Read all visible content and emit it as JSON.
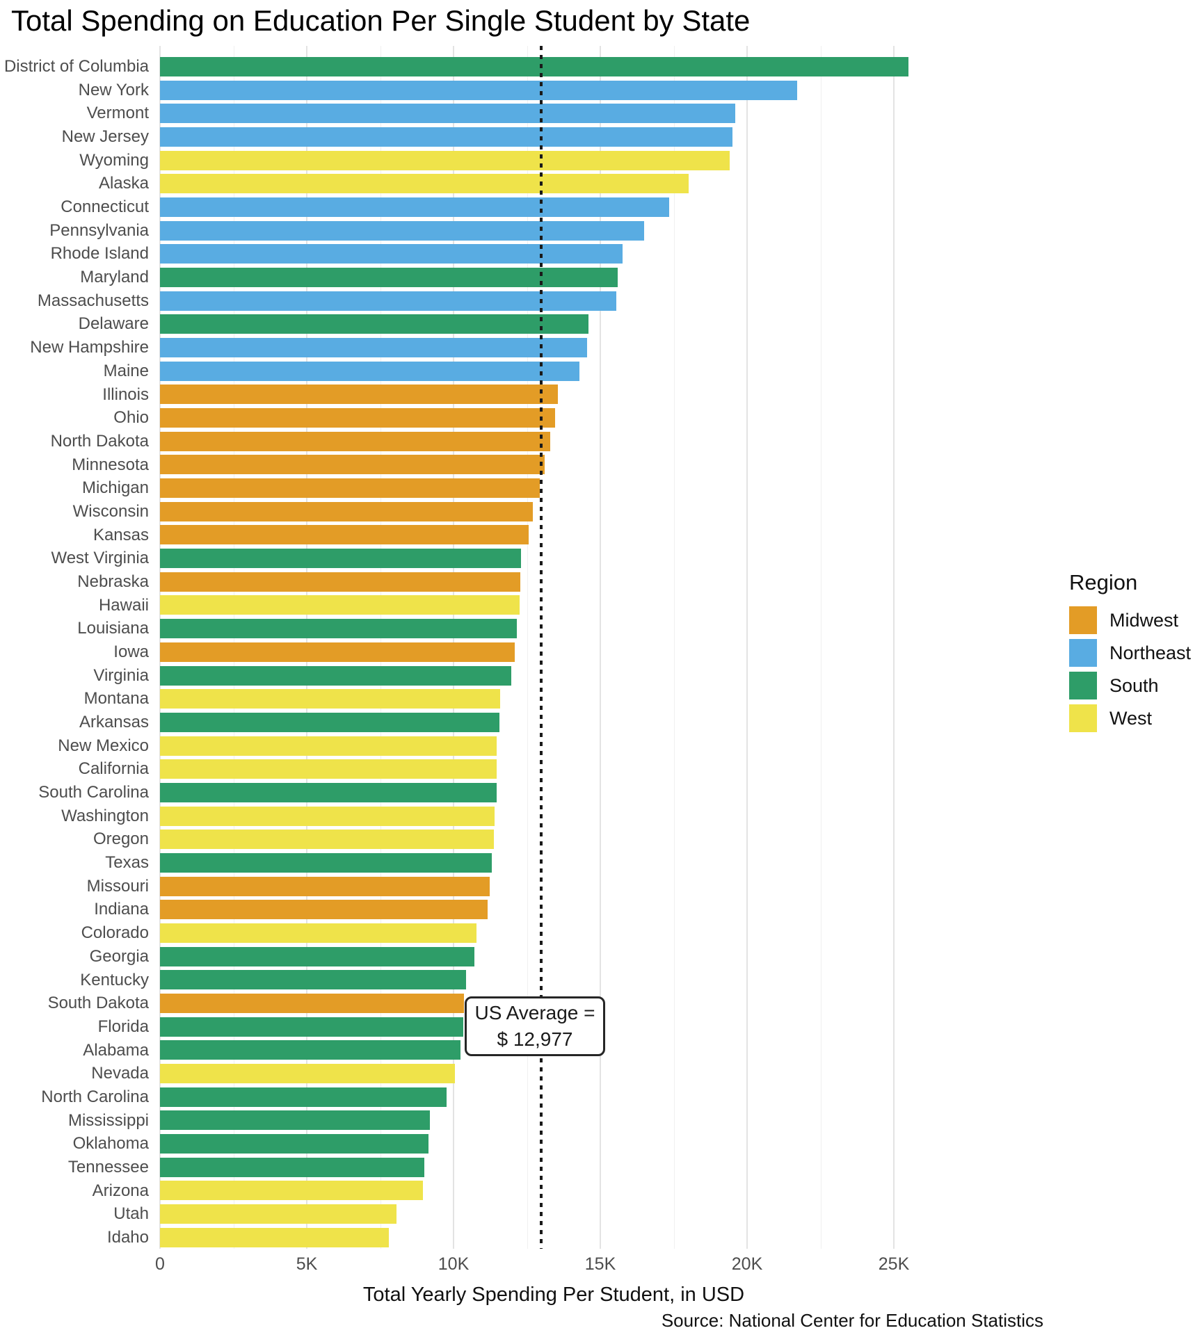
{
  "chart_data": {
    "type": "bar",
    "orientation": "horizontal",
    "title": "Total Spending on Education Per Single Student by State",
    "xlabel": "Total Yearly Spending Per Student, in USD",
    "ylabel": "",
    "caption": "Source: National Center for Education Statistics",
    "xlim": [
      0,
      26800
    ],
    "x_ticks": [
      {
        "label": "0",
        "value": 0
      },
      {
        "label": "5K",
        "value": 5000
      },
      {
        "label": "10K",
        "value": 10000
      },
      {
        "label": "15K",
        "value": 15000
      },
      {
        "label": "20K",
        "value": 20000
      },
      {
        "label": "25K",
        "value": 25000
      }
    ],
    "grid": {
      "vertical_major": true,
      "vertical_minor_step": 2500,
      "horizontal": false
    },
    "reference_line": {
      "value": 12977,
      "style": "dotted",
      "color": "#1a1a1a"
    },
    "annotation": {
      "line1": "US Average =",
      "line2": "$ 12,977",
      "value": 12977
    },
    "legend": {
      "title": "Region",
      "position": "right",
      "entries": [
        {
          "label": "Midwest",
          "color": "#E39C26"
        },
        {
          "label": "Northeast",
          "color": "#59ACE2"
        },
        {
          "label": "South",
          "color": "#2E9D68"
        },
        {
          "label": "West",
          "color": "#EFE34A"
        }
      ]
    },
    "region_colors": {
      "Midwest": "#E39C26",
      "Northeast": "#59ACE2",
      "South": "#2E9D68",
      "West": "#EFE34A"
    },
    "bars": [
      {
        "state": "District of Columbia",
        "region": "South",
        "value": 25500
      },
      {
        "state": "New York",
        "region": "Northeast",
        "value": 21700
      },
      {
        "state": "Vermont",
        "region": "Northeast",
        "value": 19600
      },
      {
        "state": "New Jersey",
        "region": "Northeast",
        "value": 19500
      },
      {
        "state": "Wyoming",
        "region": "West",
        "value": 19400
      },
      {
        "state": "Alaska",
        "region": "West",
        "value": 18000
      },
      {
        "state": "Connecticut",
        "region": "Northeast",
        "value": 17350
      },
      {
        "state": "Pennsylvania",
        "region": "Northeast",
        "value": 16500
      },
      {
        "state": "Rhode Island",
        "region": "Northeast",
        "value": 15750
      },
      {
        "state": "Maryland",
        "region": "South",
        "value": 15600
      },
      {
        "state": "Massachusetts",
        "region": "Northeast",
        "value": 15550
      },
      {
        "state": "Delaware",
        "region": "South",
        "value": 14600
      },
      {
        "state": "New Hampshire",
        "region": "Northeast",
        "value": 14550
      },
      {
        "state": "Maine",
        "region": "Northeast",
        "value": 14300
      },
      {
        "state": "Illinois",
        "region": "Midwest",
        "value": 13550
      },
      {
        "state": "Ohio",
        "region": "Midwest",
        "value": 13450
      },
      {
        "state": "North Dakota",
        "region": "Midwest",
        "value": 13300
      },
      {
        "state": "Minnesota",
        "region": "Midwest",
        "value": 13100
      },
      {
        "state": "Michigan",
        "region": "Midwest",
        "value": 12950
      },
      {
        "state": "Wisconsin",
        "region": "Midwest",
        "value": 12700
      },
      {
        "state": "Kansas",
        "region": "Midwest",
        "value": 12550
      },
      {
        "state": "West Virginia",
        "region": "South",
        "value": 12300
      },
      {
        "state": "Nebraska",
        "region": "Midwest",
        "value": 12280
      },
      {
        "state": "Hawaii",
        "region": "West",
        "value": 12260
      },
      {
        "state": "Louisiana",
        "region": "South",
        "value": 12150
      },
      {
        "state": "Iowa",
        "region": "Midwest",
        "value": 12080
      },
      {
        "state": "Virginia",
        "region": "South",
        "value": 11970
      },
      {
        "state": "Montana",
        "region": "West",
        "value": 11590
      },
      {
        "state": "Arkansas",
        "region": "South",
        "value": 11570
      },
      {
        "state": "New Mexico",
        "region": "West",
        "value": 11470
      },
      {
        "state": "California",
        "region": "West",
        "value": 11470
      },
      {
        "state": "South Carolina",
        "region": "South",
        "value": 11460
      },
      {
        "state": "Washington",
        "region": "West",
        "value": 11400
      },
      {
        "state": "Oregon",
        "region": "West",
        "value": 11370
      },
      {
        "state": "Texas",
        "region": "South",
        "value": 11300
      },
      {
        "state": "Missouri",
        "region": "Midwest",
        "value": 11240
      },
      {
        "state": "Indiana",
        "region": "Midwest",
        "value": 11170
      },
      {
        "state": "Colorado",
        "region": "West",
        "value": 10780
      },
      {
        "state": "Georgia",
        "region": "South",
        "value": 10720
      },
      {
        "state": "Kentucky",
        "region": "South",
        "value": 10420
      },
      {
        "state": "South Dakota",
        "region": "Midwest",
        "value": 10360
      },
      {
        "state": "Florida",
        "region": "South",
        "value": 10330
      },
      {
        "state": "Alabama",
        "region": "South",
        "value": 10230
      },
      {
        "state": "Nevada",
        "region": "West",
        "value": 10050
      },
      {
        "state": "North Carolina",
        "region": "South",
        "value": 9770
      },
      {
        "state": "Mississippi",
        "region": "South",
        "value": 9190
      },
      {
        "state": "Oklahoma",
        "region": "South",
        "value": 9150
      },
      {
        "state": "Tennessee",
        "region": "South",
        "value": 9000
      },
      {
        "state": "Arizona",
        "region": "West",
        "value": 8950
      },
      {
        "state": "Utah",
        "region": "West",
        "value": 8050
      },
      {
        "state": "Idaho",
        "region": "West",
        "value": 7800
      }
    ]
  }
}
